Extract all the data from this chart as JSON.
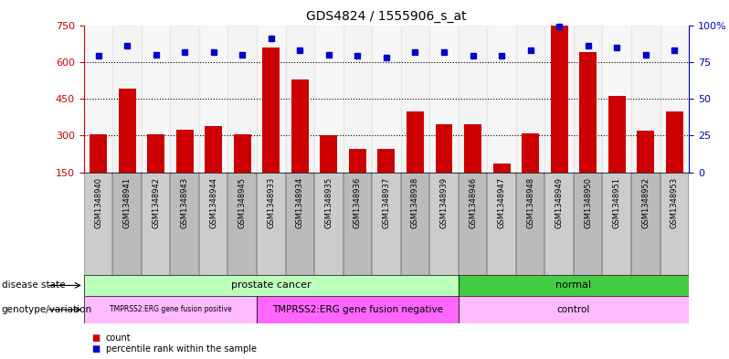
{
  "title": "GDS4824 / 1555906_s_at",
  "samples": [
    "GSM1348940",
    "GSM1348941",
    "GSM1348942",
    "GSM1348943",
    "GSM1348944",
    "GSM1348945",
    "GSM1348933",
    "GSM1348934",
    "GSM1348935",
    "GSM1348936",
    "GSM1348937",
    "GSM1348938",
    "GSM1348939",
    "GSM1348946",
    "GSM1348947",
    "GSM1348948",
    "GSM1348949",
    "GSM1348950",
    "GSM1348951",
    "GSM1348952",
    "GSM1348953"
  ],
  "counts": [
    305,
    490,
    305,
    325,
    340,
    305,
    660,
    530,
    300,
    245,
    245,
    400,
    345,
    345,
    185,
    310,
    750,
    640,
    460,
    320,
    400
  ],
  "percentiles": [
    79,
    86,
    80,
    82,
    82,
    80,
    91,
    83,
    80,
    79,
    78,
    82,
    82,
    79,
    79,
    83,
    99,
    86,
    85,
    80,
    83
  ],
  "bar_color": "#cc0000",
  "dot_color": "#0000cc",
  "ylim_left": [
    150,
    750
  ],
  "yticks_left": [
    150,
    300,
    450,
    600,
    750
  ],
  "ylim_right": [
    0,
    100
  ],
  "yticks_right": [
    0,
    25,
    50,
    75,
    100
  ],
  "grid_values": [
    300,
    450,
    600
  ],
  "col_colors": [
    "#cccccc",
    "#bbbbbb"
  ],
  "disease_state_groups": [
    {
      "label": "prostate cancer",
      "start": 0,
      "end": 13,
      "color": "#bbffbb"
    },
    {
      "label": "normal",
      "start": 13,
      "end": 21,
      "color": "#44cc44"
    }
  ],
  "genotype_groups": [
    {
      "label": "TMPRSS2:ERG gene fusion positive",
      "start": 0,
      "end": 6,
      "color": "#ffbbff"
    },
    {
      "label": "TMPRSS2:ERG gene fusion negative",
      "start": 6,
      "end": 13,
      "color": "#ff66ff"
    },
    {
      "label": "control",
      "start": 13,
      "end": 21,
      "color": "#ffbbff"
    }
  ],
  "background_color": "#ffffff",
  "left_axis_color": "#cc0000",
  "right_axis_color": "#0000cc",
  "label_disease": "disease state",
  "label_geno": "genotype/variation",
  "legend_count": "count",
  "legend_pct": "percentile rank within the sample"
}
